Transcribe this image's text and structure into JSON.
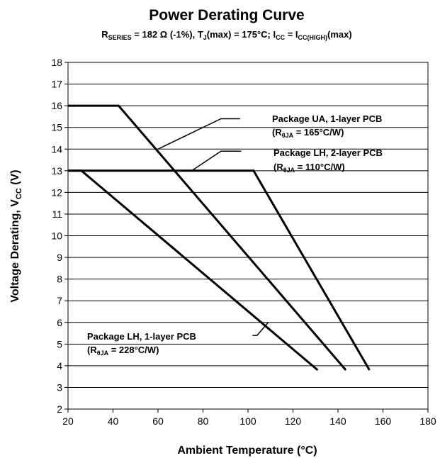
{
  "chart_data": {
    "type": "line",
    "title": "Power Derating Curve",
    "subtitle": {
      "rseries_main": "R",
      "rseries_sub": "SERIES",
      "rseries_value": " = 182 Ω (-1%), T",
      "tj_sub": "J",
      "tj_value": "(max) = 175°C;  I",
      "icc_sub": "CC",
      "icc_eq": " = I",
      "icchigh_sub": "CC(HIGH)",
      "icchigh_tail": "(max)"
    },
    "xlabel": "Ambient Temperature (°C)",
    "ylabel_main": "Voltage Derating, V",
    "ylabel_sub": "CC",
    "ylabel_tail": " (V)",
    "xlim": [
      20,
      180
    ],
    "ylim": [
      2,
      18
    ],
    "xticks": [
      20,
      40,
      60,
      80,
      100,
      120,
      140,
      160,
      180
    ],
    "yticks": [
      2,
      3,
      4,
      5,
      6,
      7,
      8,
      9,
      10,
      11,
      12,
      13,
      14,
      15,
      16,
      17,
      18
    ],
    "grid": true,
    "series": [
      {
        "line1": "Package UA, 1-layer PCB",
        "line2_pre": "(R",
        "line2_sub": "θJA",
        "line2_post": " = 165°C/W)",
        "points": [
          [
            20,
            16
          ],
          [
            42.5,
            16
          ],
          [
            143.5,
            3.8
          ]
        ]
      },
      {
        "line1": "Package LH, 2-layer PCB",
        "line2_pre": "(R",
        "line2_sub": "θJA",
        "line2_post": " = 110°C/W)",
        "points": [
          [
            20,
            13
          ],
          [
            102.5,
            13
          ],
          [
            154,
            3.8
          ]
        ]
      },
      {
        "line1": "Package LH, 1-layer PCB",
        "line2_pre": "(R",
        "line2_sub": "θJA",
        "line2_post": " = 228°C/W)",
        "points": [
          [
            20,
            13
          ],
          [
            26,
            13
          ],
          [
            131,
            3.8
          ]
        ]
      }
    ]
  }
}
